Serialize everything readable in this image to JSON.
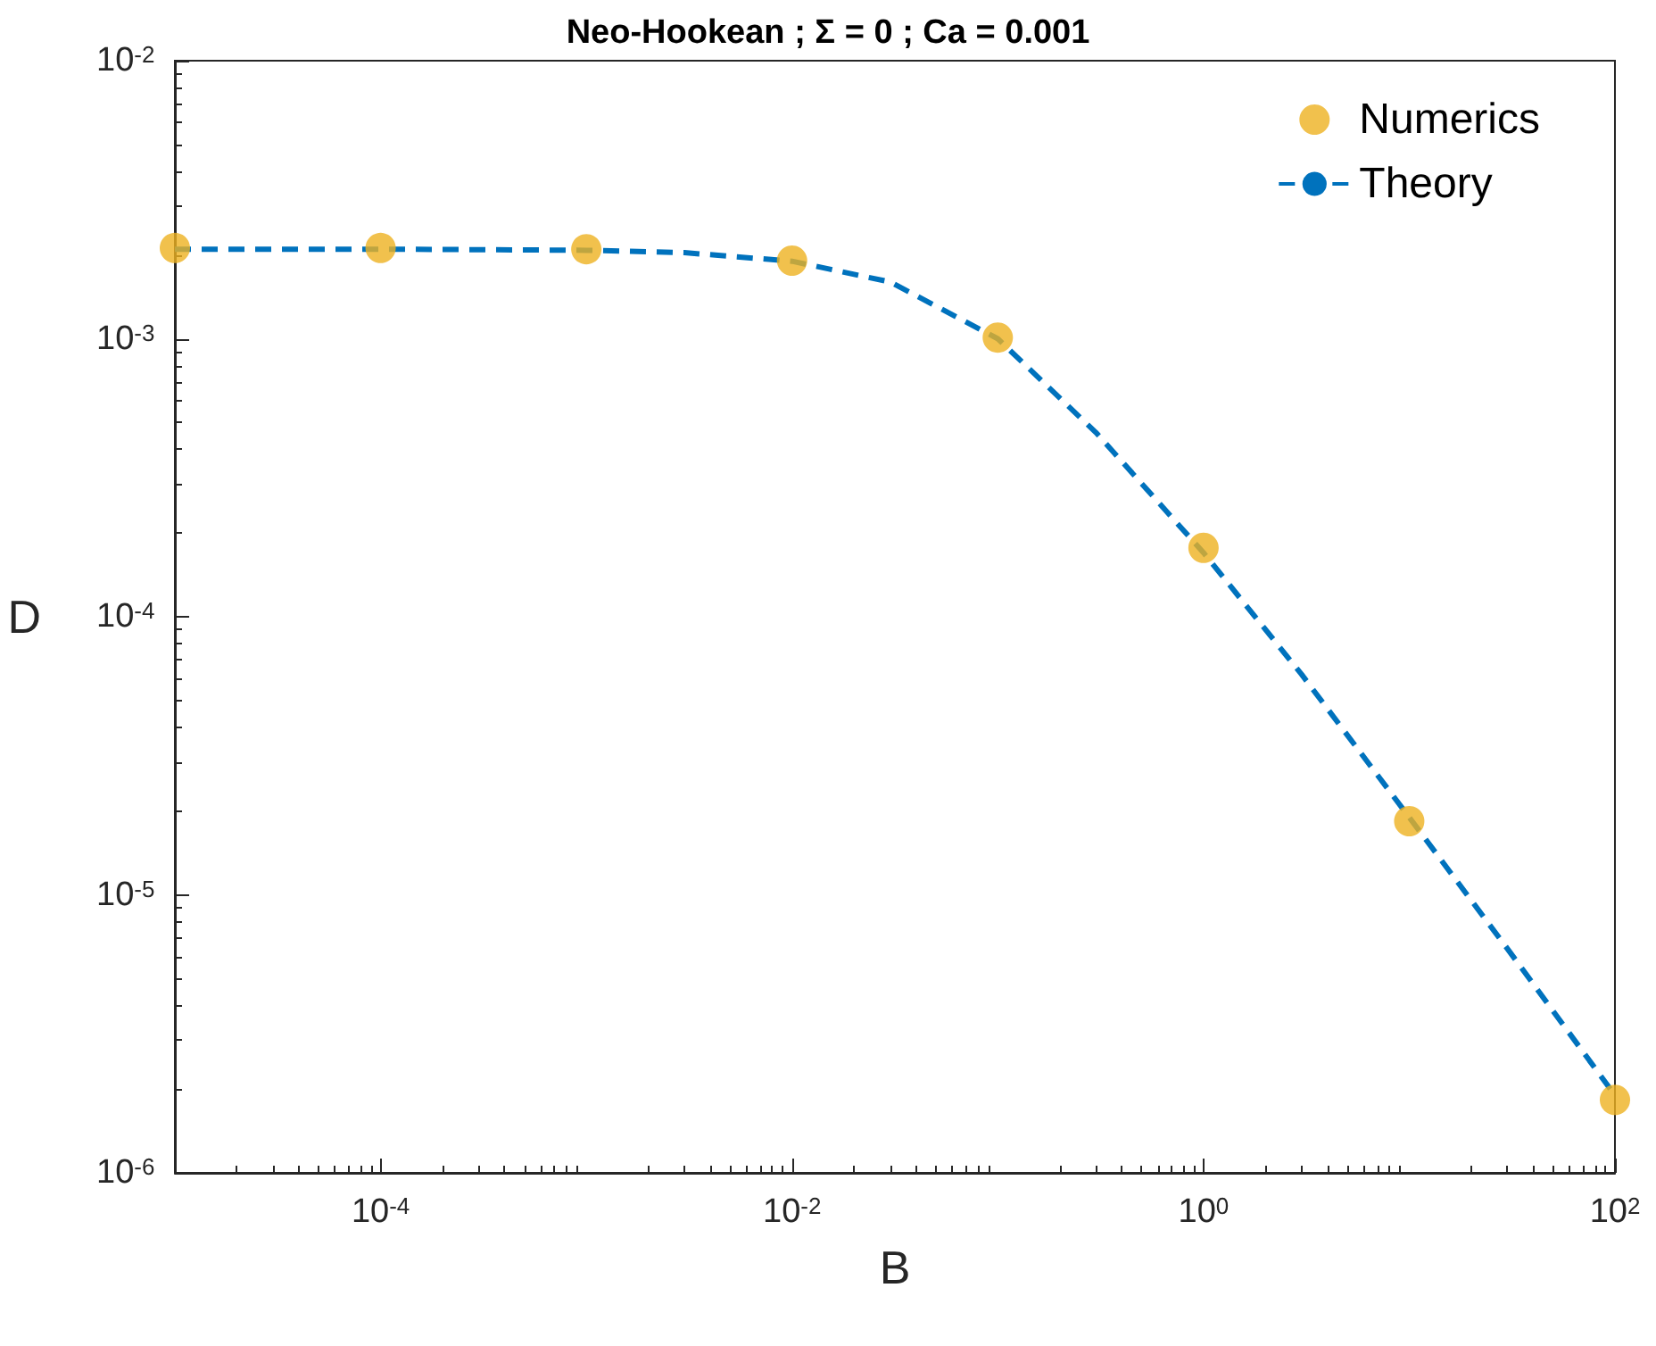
{
  "chart_data": {
    "type": "scatter",
    "title": "Neo-Hookean ; Σ = 0 ; Ca = 0.001",
    "xlabel": "B",
    "ylabel": "D",
    "log": "xy",
    "grid": false,
    "legend": "top right",
    "xlim": [
      1e-05,
      100
    ],
    "ylim": [
      1e-06,
      0.01
    ],
    "xticks": [
      {
        "value": 0.0001,
        "label": "10$^{-4}$"
      },
      {
        "value": 0.01,
        "label": "10$^{-2}$"
      },
      {
        "value": 1,
        "label": "10$^{0}$"
      },
      {
        "value": 100,
        "label": "10$^{2}$"
      }
    ],
    "yticks": [
      {
        "value": 1e-06,
        "label": "10$^{-6}$"
      },
      {
        "value": 1e-05,
        "label": "10$^{-5}$"
      },
      {
        "value": 0.0001,
        "label": "10$^{-4}$"
      },
      {
        "value": 0.001,
        "label": "10$^{-3}$"
      },
      {
        "value": 0.01,
        "label": "10$^{-2}$"
      }
    ],
    "series": [
      {
        "name": "Numerics",
        "type": "scatter",
        "marker": "circle",
        "color": "#edb120",
        "x": [
          1e-05,
          0.0001,
          0.001,
          0.01,
          0.1,
          1,
          10,
          100
        ],
        "values": [
          0.00212,
          0.00212,
          0.0021,
          0.00191,
          0.00101,
          0.000177,
          1.84e-05,
          1.83e-06
        ]
      },
      {
        "name": "Theory",
        "type": "line",
        "marker": "none",
        "line_style": "dashed",
        "color": "#0072bd",
        "x": [
          1e-05,
          0.0001,
          0.001,
          0.003,
          0.01,
          0.03,
          0.1,
          0.3,
          1,
          3,
          10,
          30,
          100
        ],
        "values": [
          0.0021,
          0.0021,
          0.00208,
          0.00204,
          0.0019,
          0.0016,
          0.001,
          0.00046,
          0.00017,
          6.2e-05,
          1.9e-05,
          6.4e-06,
          1.9e-06
        ]
      }
    ]
  }
}
